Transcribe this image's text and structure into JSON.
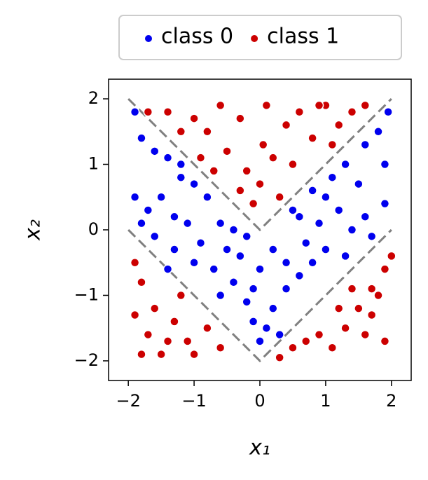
{
  "chart_data": {
    "type": "scatter",
    "x_label": "x₁",
    "y_label": "x₂",
    "xlim": [
      -2.3,
      2.3
    ],
    "ylim": [
      -2.3,
      2.3
    ],
    "xticks": [
      {
        "value": -2,
        "label": "−2"
      },
      {
        "value": -1,
        "label": "−1"
      },
      0,
      1,
      2
    ],
    "yticks": [
      {
        "value": -2,
        "label": "−2"
      },
      {
        "value": -1,
        "label": "−1"
      },
      0,
      1,
      2
    ],
    "legend": "top-outside",
    "lines": [
      {
        "x": [
          -2,
          0,
          2
        ],
        "y": [
          2,
          0,
          2
        ],
        "color": "#808080",
        "style": "dashed"
      },
      {
        "x": [
          -2,
          0,
          2
        ],
        "y": [
          0,
          -2,
          0
        ],
        "color": "#808080",
        "style": "dashed"
      }
    ],
    "series": [
      {
        "name": "class 0",
        "color": "#0000ee",
        "x": [
          -1.9,
          -1.8,
          -1.6,
          -1.4,
          -1.9,
          -1.7,
          -1.5,
          -1.2,
          -1,
          -0.8,
          -1.3,
          -1.1,
          -0.6,
          -0.4,
          -0.2,
          -0.5,
          -0.9,
          -1.3,
          -1.6,
          -1.8,
          -1,
          -0.7,
          -0.4,
          -0.2,
          -0.1,
          0,
          0.1,
          0.2,
          0.4,
          0.6,
          0.8,
          1,
          0.7,
          0.4,
          0.2,
          0,
          -0.3,
          0.5,
          0.8,
          1.1,
          1.3,
          1.6,
          1.8,
          1.95,
          1.5,
          1.2,
          1.6,
          1.9,
          1.7,
          1.4,
          1,
          0.9,
          1.3,
          0.3,
          -0.6,
          -1.4,
          -1.2,
          1.9,
          0.6,
          -0.1
        ],
        "y": [
          1.8,
          1.4,
          1.2,
          1.1,
          0.5,
          0.3,
          0.5,
          0.8,
          0.7,
          0.5,
          0.2,
          0.1,
          0.1,
          0,
          -0.1,
          -0.3,
          -0.2,
          -0.3,
          -0.1,
          0.1,
          -0.5,
          -0.6,
          -0.8,
          -1.1,
          -1.4,
          -1.7,
          -1.5,
          -1.2,
          -0.9,
          -0.7,
          -0.5,
          -0.3,
          -0.2,
          -0.5,
          -0.3,
          -0.6,
          -0.4,
          0.3,
          0.6,
          0.8,
          1,
          1.3,
          1.5,
          1.8,
          0.7,
          0.3,
          0.2,
          0.4,
          -0.1,
          0,
          0.5,
          0.1,
          -0.4,
          -1.6,
          -1,
          -0.6,
          1,
          1,
          0.2,
          -0.9
        ]
      },
      {
        "name": "class 1",
        "color": "#cc0000",
        "x": [
          -1.7,
          -1.4,
          -1,
          -0.8,
          -0.6,
          -0.3,
          -0.5,
          -0.2,
          0,
          0.2,
          0.1,
          0.4,
          0.6,
          0.8,
          1,
          1.2,
          1.4,
          1.6,
          0.3,
          -0.3,
          0.5,
          -0.9,
          -1.2,
          0.9,
          1.1,
          -0.1,
          0.05,
          -0.7,
          -1.9,
          -1.8,
          -1.9,
          -1.7,
          -1.8,
          -1.5,
          -1.3,
          -1.1,
          -1.4,
          -1.6,
          -1,
          -0.8,
          -0.6,
          -1.2,
          0.3,
          0.5,
          0.7,
          0.9,
          1.1,
          1.3,
          1.5,
          1.7,
          1.9,
          1.8,
          2,
          1.6,
          1.9,
          1.2,
          1.7,
          1.4
        ],
        "y": [
          1.8,
          1.8,
          1.7,
          1.5,
          1.9,
          1.7,
          1.2,
          0.9,
          0.7,
          1.1,
          1.9,
          1.6,
          1.8,
          1.4,
          1.9,
          1.6,
          1.8,
          1.9,
          0.5,
          0.6,
          1,
          1.1,
          1.5,
          1.9,
          1.3,
          0.4,
          1.3,
          0.9,
          -0.5,
          -0.8,
          -1.3,
          -1.6,
          -1.9,
          -1.9,
          -1.4,
          -1.7,
          -1.7,
          -1.2,
          -1.9,
          -1.5,
          -1.8,
          -1,
          -1.95,
          -1.8,
          -1.7,
          -1.6,
          -1.8,
          -1.5,
          -1.2,
          -0.9,
          -0.6,
          -1,
          -0.4,
          -1.6,
          -1.7,
          -1.2,
          -1.3,
          -0.9
        ]
      }
    ]
  }
}
